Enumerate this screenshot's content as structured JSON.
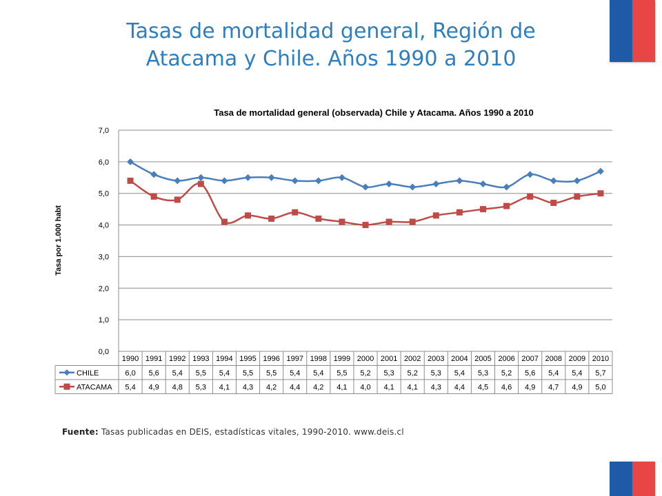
{
  "slide": {
    "title_line1": "Tasas de mortalidad general, Región de",
    "title_line2": "Atacama y Chile. Años 1990 a 2010",
    "source_label": "Fuente:",
    "source_text": "Tasas publicadas en DEIS, estadísticas vitales, 1990-2010.  www.deis.cl",
    "flag_colors": {
      "blue": "#1f5aa6",
      "red": "#e84545"
    }
  },
  "chart_data": {
    "type": "line",
    "title": "Tasa de mortalidad general  (observada) Chile y Atacama. Años 1990  a 2010",
    "xlabel": "",
    "ylabel": "Tasa por 1.000 habt",
    "ylim": [
      0,
      7
    ],
    "yticks": [
      "0,0",
      "1,0",
      "2,0",
      "3,0",
      "4,0",
      "5,0",
      "6,0",
      "7,0"
    ],
    "grid": true,
    "legend": "data-table",
    "categories": [
      "1990",
      "1991",
      "1992",
      "1993",
      "1994",
      "1995",
      "1996",
      "1997",
      "1998",
      "1999",
      "2000",
      "2001",
      "2002",
      "2003",
      "2004",
      "2005",
      "2006",
      "2007",
      "2008",
      "2009",
      "2010"
    ],
    "series": [
      {
        "name": "CHILE",
        "color": "#4a7ebb",
        "marker": "diamond",
        "values": [
          6.0,
          5.6,
          5.4,
          5.5,
          5.4,
          5.5,
          5.5,
          5.4,
          5.4,
          5.5,
          5.2,
          5.3,
          5.2,
          5.3,
          5.4,
          5.3,
          5.2,
          5.6,
          5.4,
          5.4,
          5.7
        ],
        "labels": [
          "6,0",
          "5,6",
          "5,4",
          "5,5",
          "5,4",
          "5,5",
          "5,5",
          "5,4",
          "5,4",
          "5,5",
          "5,2",
          "5,3",
          "5,2",
          "5,3",
          "5,4",
          "5,3",
          "5,2",
          "5,6",
          "5,4",
          "5,4",
          "5,7"
        ]
      },
      {
        "name": "ATACAMA",
        "color": "#be4b48",
        "marker": "square",
        "values": [
          5.4,
          4.9,
          4.8,
          5.3,
          4.1,
          4.3,
          4.2,
          4.4,
          4.2,
          4.1,
          4.0,
          4.1,
          4.1,
          4.3,
          4.4,
          4.5,
          4.6,
          4.9,
          4.7,
          4.9,
          5.0
        ],
        "labels": [
          "5,4",
          "4,9",
          "4,8",
          "5,3",
          "4,1",
          "4,3",
          "4,2",
          "4,4",
          "4,2",
          "4,1",
          "4,0",
          "4,1",
          "4,1",
          "4,3",
          "4,4",
          "4,5",
          "4,6",
          "4,9",
          "4,7",
          "4,9",
          "5,0"
        ]
      }
    ]
  }
}
